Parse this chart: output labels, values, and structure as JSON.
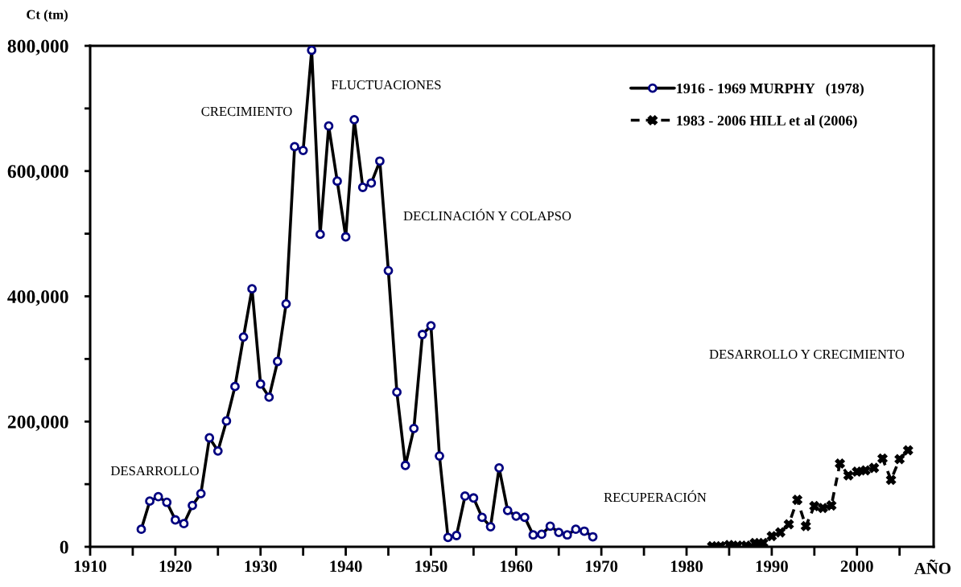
{
  "chart_data": {
    "type": "line",
    "xlabel": "AÑO",
    "ylabel": "Ct (tm)",
    "xlim": [
      1910,
      2009
    ],
    "xticks": [
      1910,
      {
        "value": 1915,
        "label": null
      },
      1920,
      {
        "value": 1925,
        "label": null
      },
      1930,
      {
        "value": 1935,
        "label": null
      },
      1940,
      {
        "value": 1945,
        "label": null
      },
      1950,
      {
        "value": 1955,
        "label": null
      },
      1960,
      {
        "value": 1965,
        "label": null
      },
      1970,
      {
        "value": 1975,
        "label": null
      },
      1980,
      {
        "value": 1985,
        "label": null
      },
      1990,
      {
        "value": 1995,
        "label": null
      },
      2000,
      {
        "value": 2005,
        "label": null
      }
    ],
    "ylim": [
      0,
      800000
    ],
    "yticks": [
      0,
      {
        "value": 100000,
        "label": null
      },
      {
        "value": 200000,
        "label": "200,000"
      },
      {
        "value": 300000,
        "label": null
      },
      {
        "value": 400000,
        "label": "400,000"
      },
      {
        "value": 500000,
        "label": null
      },
      {
        "value": 600000,
        "label": "600,000"
      },
      {
        "value": 700000,
        "label": null
      },
      {
        "value": 800000,
        "label": "800,000"
      }
    ],
    "legend": "top right",
    "series": [
      {
        "name": "1916 - 1969 MURPHY   (1978)",
        "color": "#000000",
        "marker": "circle",
        "line_style": "solid",
        "x": [
          1916,
          1917,
          1918,
          1919,
          1920,
          1921,
          1922,
          1923,
          1924,
          1925,
          1926,
          1927,
          1928,
          1929,
          1930,
          1931,
          1932,
          1933,
          1934,
          1935,
          1936,
          1937,
          1938,
          1939,
          1940,
          1941,
          1942,
          1943,
          1944,
          1945,
          1946,
          1947,
          1948,
          1949,
          1950,
          1951,
          1952,
          1953,
          1954,
          1955,
          1956,
          1957,
          1958,
          1959,
          1960,
          1961,
          1962,
          1963,
          1964,
          1965,
          1966,
          1967,
          1968,
          1969
        ],
        "values": [
          28000,
          73000,
          80000,
          71000,
          43000,
          37000,
          66000,
          85000,
          174000,
          153000,
          201000,
          256000,
          335000,
          412000,
          260000,
          239000,
          296000,
          388000,
          639000,
          633000,
          793000,
          499000,
          672000,
          584000,
          495000,
          682000,
          574000,
          581000,
          616000,
          441000,
          247000,
          130000,
          189000,
          339000,
          353000,
          145000,
          15000,
          18000,
          81000,
          78000,
          47000,
          32000,
          126000,
          58000,
          49000,
          47000,
          19000,
          20000,
          33000,
          23000,
          19000,
          28000,
          25000,
          16000
        ]
      },
      {
        "name": "1983 - 2006 HILL et al (2006)",
        "color": "#000000",
        "marker": "cross",
        "line_style": "dashed",
        "x": [
          1983,
          1984,
          1985,
          1986,
          1987,
          1988,
          1989,
          1990,
          1991,
          1992,
          1993,
          1994,
          1995,
          1996,
          1997,
          1998,
          1999,
          2000,
          2001,
          2002,
          2003,
          2004,
          2005,
          2006
        ],
        "values": [
          1000,
          1000,
          3000,
          2000,
          2000,
          6000,
          6000,
          17000,
          23000,
          36000,
          75000,
          33000,
          65000,
          62000,
          66000,
          133000,
          114000,
          120000,
          122000,
          126000,
          141000,
          107000,
          140000,
          154000
        ]
      }
    ],
    "annotations": [
      "DESARROLLO",
      "CRECIMIENTO",
      "FLUCTUACIONES",
      "DECLINACIÓN Y COLAPSO",
      "RECUPERACIÓN",
      "DESARROLLO Y CRECIMIENTO"
    ]
  }
}
